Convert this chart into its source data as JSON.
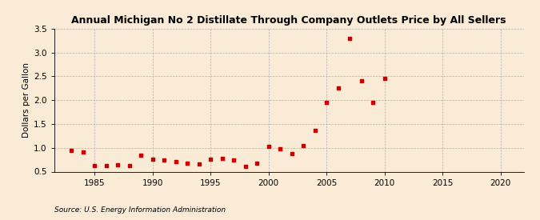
{
  "title": "Annual Michigan No 2 Distillate Through Company Outlets Price by All Sellers",
  "ylabel": "Dollars per Gallon",
  "source": "Source: U.S. Energy Information Administration",
  "background_color": "#faebd7",
  "plot_bg_color": "#faebd7",
  "marker_color": "#cc0000",
  "xlim": [
    1981.5,
    2022
  ],
  "ylim": [
    0.5,
    3.5
  ],
  "xticks": [
    1985,
    1990,
    1995,
    2000,
    2005,
    2010,
    2015,
    2020
  ],
  "yticks": [
    0.5,
    1.0,
    1.5,
    2.0,
    2.5,
    3.0,
    3.5
  ],
  "years": [
    1983,
    1984,
    1985,
    1986,
    1987,
    1988,
    1989,
    1990,
    1991,
    1992,
    1993,
    1994,
    1995,
    1996,
    1997,
    1998,
    1999,
    2000,
    2001,
    2002,
    2003,
    2004,
    2005,
    2006,
    2007,
    2008,
    2009,
    2010
  ],
  "values": [
    0.94,
    0.91,
    0.63,
    0.62,
    0.65,
    0.63,
    0.84,
    0.76,
    0.74,
    0.71,
    0.68,
    0.66,
    0.76,
    0.78,
    0.75,
    0.61,
    0.67,
    1.03,
    0.97,
    0.87,
    1.05,
    1.36,
    1.96,
    2.25,
    3.29,
    2.4,
    1.96,
    2.45
  ],
  "title_fontsize": 9,
  "tick_fontsize": 7.5,
  "ylabel_fontsize": 7.5,
  "source_fontsize": 6.5,
  "marker_size": 10
}
